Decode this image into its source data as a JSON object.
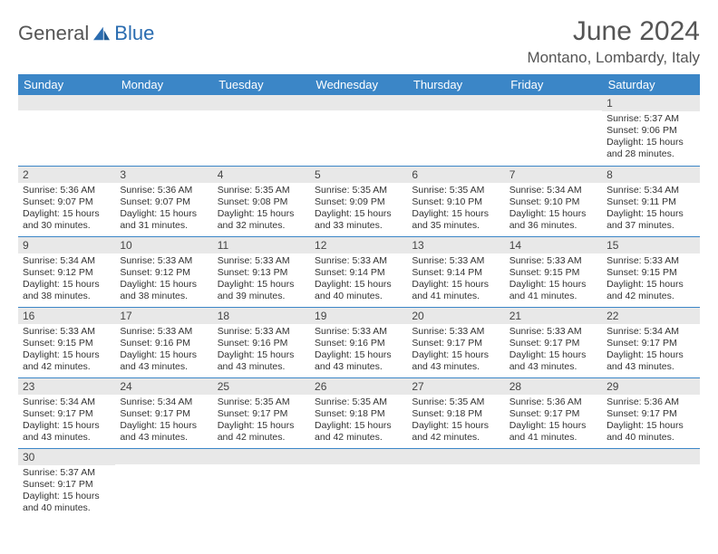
{
  "logo": {
    "part1": "General",
    "part2": "Blue"
  },
  "title": "June 2024",
  "location": "Montano, Lombardy, Italy",
  "colors": {
    "header_bg": "#3b86c7",
    "header_fg": "#ffffff",
    "daynum_bg": "#e8e8e8",
    "border": "#3b86c7",
    "logo_accent": "#2a6cb0"
  },
  "weekdays": [
    "Sunday",
    "Monday",
    "Tuesday",
    "Wednesday",
    "Thursday",
    "Friday",
    "Saturday"
  ],
  "weeks": [
    [
      {
        "n": "",
        "lines": []
      },
      {
        "n": "",
        "lines": []
      },
      {
        "n": "",
        "lines": []
      },
      {
        "n": "",
        "lines": []
      },
      {
        "n": "",
        "lines": []
      },
      {
        "n": "",
        "lines": []
      },
      {
        "n": "1",
        "lines": [
          "Sunrise: 5:37 AM",
          "Sunset: 9:06 PM",
          "Daylight: 15 hours and 28 minutes."
        ]
      }
    ],
    [
      {
        "n": "2",
        "lines": [
          "Sunrise: 5:36 AM",
          "Sunset: 9:07 PM",
          "Daylight: 15 hours and 30 minutes."
        ]
      },
      {
        "n": "3",
        "lines": [
          "Sunrise: 5:36 AM",
          "Sunset: 9:07 PM",
          "Daylight: 15 hours and 31 minutes."
        ]
      },
      {
        "n": "4",
        "lines": [
          "Sunrise: 5:35 AM",
          "Sunset: 9:08 PM",
          "Daylight: 15 hours and 32 minutes."
        ]
      },
      {
        "n": "5",
        "lines": [
          "Sunrise: 5:35 AM",
          "Sunset: 9:09 PM",
          "Daylight: 15 hours and 33 minutes."
        ]
      },
      {
        "n": "6",
        "lines": [
          "Sunrise: 5:35 AM",
          "Sunset: 9:10 PM",
          "Daylight: 15 hours and 35 minutes."
        ]
      },
      {
        "n": "7",
        "lines": [
          "Sunrise: 5:34 AM",
          "Sunset: 9:10 PM",
          "Daylight: 15 hours and 36 minutes."
        ]
      },
      {
        "n": "8",
        "lines": [
          "Sunrise: 5:34 AM",
          "Sunset: 9:11 PM",
          "Daylight: 15 hours and 37 minutes."
        ]
      }
    ],
    [
      {
        "n": "9",
        "lines": [
          "Sunrise: 5:34 AM",
          "Sunset: 9:12 PM",
          "Daylight: 15 hours and 38 minutes."
        ]
      },
      {
        "n": "10",
        "lines": [
          "Sunrise: 5:33 AM",
          "Sunset: 9:12 PM",
          "Daylight: 15 hours and 38 minutes."
        ]
      },
      {
        "n": "11",
        "lines": [
          "Sunrise: 5:33 AM",
          "Sunset: 9:13 PM",
          "Daylight: 15 hours and 39 minutes."
        ]
      },
      {
        "n": "12",
        "lines": [
          "Sunrise: 5:33 AM",
          "Sunset: 9:14 PM",
          "Daylight: 15 hours and 40 minutes."
        ]
      },
      {
        "n": "13",
        "lines": [
          "Sunrise: 5:33 AM",
          "Sunset: 9:14 PM",
          "Daylight: 15 hours and 41 minutes."
        ]
      },
      {
        "n": "14",
        "lines": [
          "Sunrise: 5:33 AM",
          "Sunset: 9:15 PM",
          "Daylight: 15 hours and 41 minutes."
        ]
      },
      {
        "n": "15",
        "lines": [
          "Sunrise: 5:33 AM",
          "Sunset: 9:15 PM",
          "Daylight: 15 hours and 42 minutes."
        ]
      }
    ],
    [
      {
        "n": "16",
        "lines": [
          "Sunrise: 5:33 AM",
          "Sunset: 9:15 PM",
          "Daylight: 15 hours and 42 minutes."
        ]
      },
      {
        "n": "17",
        "lines": [
          "Sunrise: 5:33 AM",
          "Sunset: 9:16 PM",
          "Daylight: 15 hours and 43 minutes."
        ]
      },
      {
        "n": "18",
        "lines": [
          "Sunrise: 5:33 AM",
          "Sunset: 9:16 PM",
          "Daylight: 15 hours and 43 minutes."
        ]
      },
      {
        "n": "19",
        "lines": [
          "Sunrise: 5:33 AM",
          "Sunset: 9:16 PM",
          "Daylight: 15 hours and 43 minutes."
        ]
      },
      {
        "n": "20",
        "lines": [
          "Sunrise: 5:33 AM",
          "Sunset: 9:17 PM",
          "Daylight: 15 hours and 43 minutes."
        ]
      },
      {
        "n": "21",
        "lines": [
          "Sunrise: 5:33 AM",
          "Sunset: 9:17 PM",
          "Daylight: 15 hours and 43 minutes."
        ]
      },
      {
        "n": "22",
        "lines": [
          "Sunrise: 5:34 AM",
          "Sunset: 9:17 PM",
          "Daylight: 15 hours and 43 minutes."
        ]
      }
    ],
    [
      {
        "n": "23",
        "lines": [
          "Sunrise: 5:34 AM",
          "Sunset: 9:17 PM",
          "Daylight: 15 hours and 43 minutes."
        ]
      },
      {
        "n": "24",
        "lines": [
          "Sunrise: 5:34 AM",
          "Sunset: 9:17 PM",
          "Daylight: 15 hours and 43 minutes."
        ]
      },
      {
        "n": "25",
        "lines": [
          "Sunrise: 5:35 AM",
          "Sunset: 9:17 PM",
          "Daylight: 15 hours and 42 minutes."
        ]
      },
      {
        "n": "26",
        "lines": [
          "Sunrise: 5:35 AM",
          "Sunset: 9:18 PM",
          "Daylight: 15 hours and 42 minutes."
        ]
      },
      {
        "n": "27",
        "lines": [
          "Sunrise: 5:35 AM",
          "Sunset: 9:18 PM",
          "Daylight: 15 hours and 42 minutes."
        ]
      },
      {
        "n": "28",
        "lines": [
          "Sunrise: 5:36 AM",
          "Sunset: 9:17 PM",
          "Daylight: 15 hours and 41 minutes."
        ]
      },
      {
        "n": "29",
        "lines": [
          "Sunrise: 5:36 AM",
          "Sunset: 9:17 PM",
          "Daylight: 15 hours and 40 minutes."
        ]
      }
    ],
    [
      {
        "n": "30",
        "lines": [
          "Sunrise: 5:37 AM",
          "Sunset: 9:17 PM",
          "Daylight: 15 hours and 40 minutes."
        ]
      },
      {
        "n": "",
        "lines": []
      },
      {
        "n": "",
        "lines": []
      },
      {
        "n": "",
        "lines": []
      },
      {
        "n": "",
        "lines": []
      },
      {
        "n": "",
        "lines": []
      },
      {
        "n": "",
        "lines": []
      }
    ]
  ]
}
